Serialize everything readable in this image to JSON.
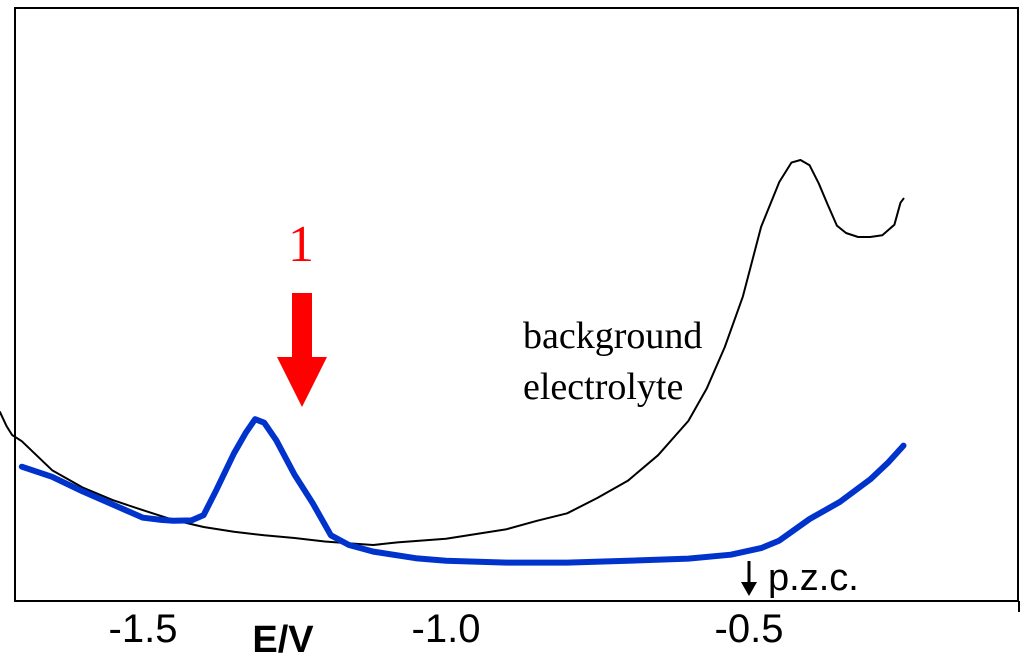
{
  "chart_data": {
    "type": "line",
    "title": "",
    "xlabel": "E/V",
    "ylabel": "",
    "xlim": [
      -1.75,
      -0.245
    ],
    "ylim": [
      0,
      1
    ],
    "x_ticks": [
      {
        "value": -1.5,
        "label": "-1.5"
      },
      {
        "value": -1.0,
        "label": "-1.0"
      },
      {
        "value": -0.5,
        "label": "-0.5"
      }
    ],
    "grid": false,
    "series": [
      {
        "label": "background electrolyte",
        "color": "#000000",
        "points": [
          [
            -1.736,
            0.302
          ],
          [
            -1.725,
            0.27
          ],
          [
            -1.716,
            0.25
          ],
          [
            -1.7,
            0.236
          ],
          [
            -1.65,
            0.17
          ],
          [
            -1.6,
            0.131
          ],
          [
            -1.55,
            0.102
          ],
          [
            -1.5,
            0.079
          ],
          [
            -1.45,
            0.057
          ],
          [
            -1.4,
            0.041
          ],
          [
            -1.35,
            0.03
          ],
          [
            -1.3,
            0.022
          ],
          [
            -1.25,
            0.016
          ],
          [
            -1.2,
            0.008
          ],
          [
            -1.15,
            0.003
          ],
          [
            -1.12,
            0.0
          ],
          [
            -1.08,
            0.006
          ],
          [
            -1.0,
            0.014
          ],
          [
            -0.95,
            0.025
          ],
          [
            -0.9,
            0.036
          ],
          [
            -0.85,
            0.055
          ],
          [
            -0.8,
            0.072
          ],
          [
            -0.75,
            0.107
          ],
          [
            -0.7,
            0.146
          ],
          [
            -0.65,
            0.204
          ],
          [
            -0.6,
            0.282
          ],
          [
            -0.57,
            0.355
          ],
          [
            -0.54,
            0.45
          ],
          [
            -0.51,
            0.565
          ],
          [
            -0.48,
            0.723
          ],
          [
            -0.45,
            0.825
          ],
          [
            -0.43,
            0.869
          ],
          [
            -0.415,
            0.875
          ],
          [
            -0.4,
            0.863
          ],
          [
            -0.385,
            0.822
          ],
          [
            -0.37,
            0.773
          ],
          [
            -0.355,
            0.726
          ],
          [
            -0.34,
            0.709
          ],
          [
            -0.32,
            0.7
          ],
          [
            -0.3,
            0.7
          ],
          [
            -0.28,
            0.704
          ],
          [
            -0.26,
            0.728
          ],
          [
            -0.25,
            0.778
          ],
          [
            -0.245,
            0.787
          ]
        ]
      },
      {
        "label": "",
        "color": "#0033cc",
        "points": [
          [
            -1.7,
            0.178
          ],
          [
            -1.65,
            0.155
          ],
          [
            -1.6,
            0.122
          ],
          [
            -1.55,
            0.092
          ],
          [
            -1.5,
            0.062
          ],
          [
            -1.47,
            0.057
          ],
          [
            -1.45,
            0.055
          ],
          [
            -1.42,
            0.056
          ],
          [
            -1.4,
            0.068
          ],
          [
            -1.38,
            0.122
          ],
          [
            -1.35,
            0.208
          ],
          [
            -1.33,
            0.256
          ],
          [
            -1.315,
            0.286
          ],
          [
            -1.3,
            0.278
          ],
          [
            -1.28,
            0.238
          ],
          [
            -1.25,
            0.16
          ],
          [
            -1.22,
            0.095
          ],
          [
            -1.19,
            0.022
          ],
          [
            -1.16,
            0.0
          ],
          [
            -1.12,
            -0.015
          ],
          [
            -1.05,
            -0.03
          ],
          [
            -1.0,
            -0.036
          ],
          [
            -0.9,
            -0.04
          ],
          [
            -0.8,
            -0.04
          ],
          [
            -0.7,
            -0.036
          ],
          [
            -0.6,
            -0.031
          ],
          [
            -0.53,
            -0.022
          ],
          [
            -0.48,
            -0.007
          ],
          [
            -0.45,
            0.01
          ],
          [
            -0.4,
            0.059
          ],
          [
            -0.35,
            0.098
          ],
          [
            -0.3,
            0.149
          ],
          [
            -0.27,
            0.188
          ],
          [
            -0.245,
            0.226
          ]
        ]
      }
    ],
    "annotations": {
      "background_label_line1": "background",
      "background_label_line2": "electrolyte",
      "peak_label": "1",
      "peak_arrow_color": "#ff0000",
      "pzc_label": "p.z.c.",
      "pzc_x": -0.505
    }
  }
}
